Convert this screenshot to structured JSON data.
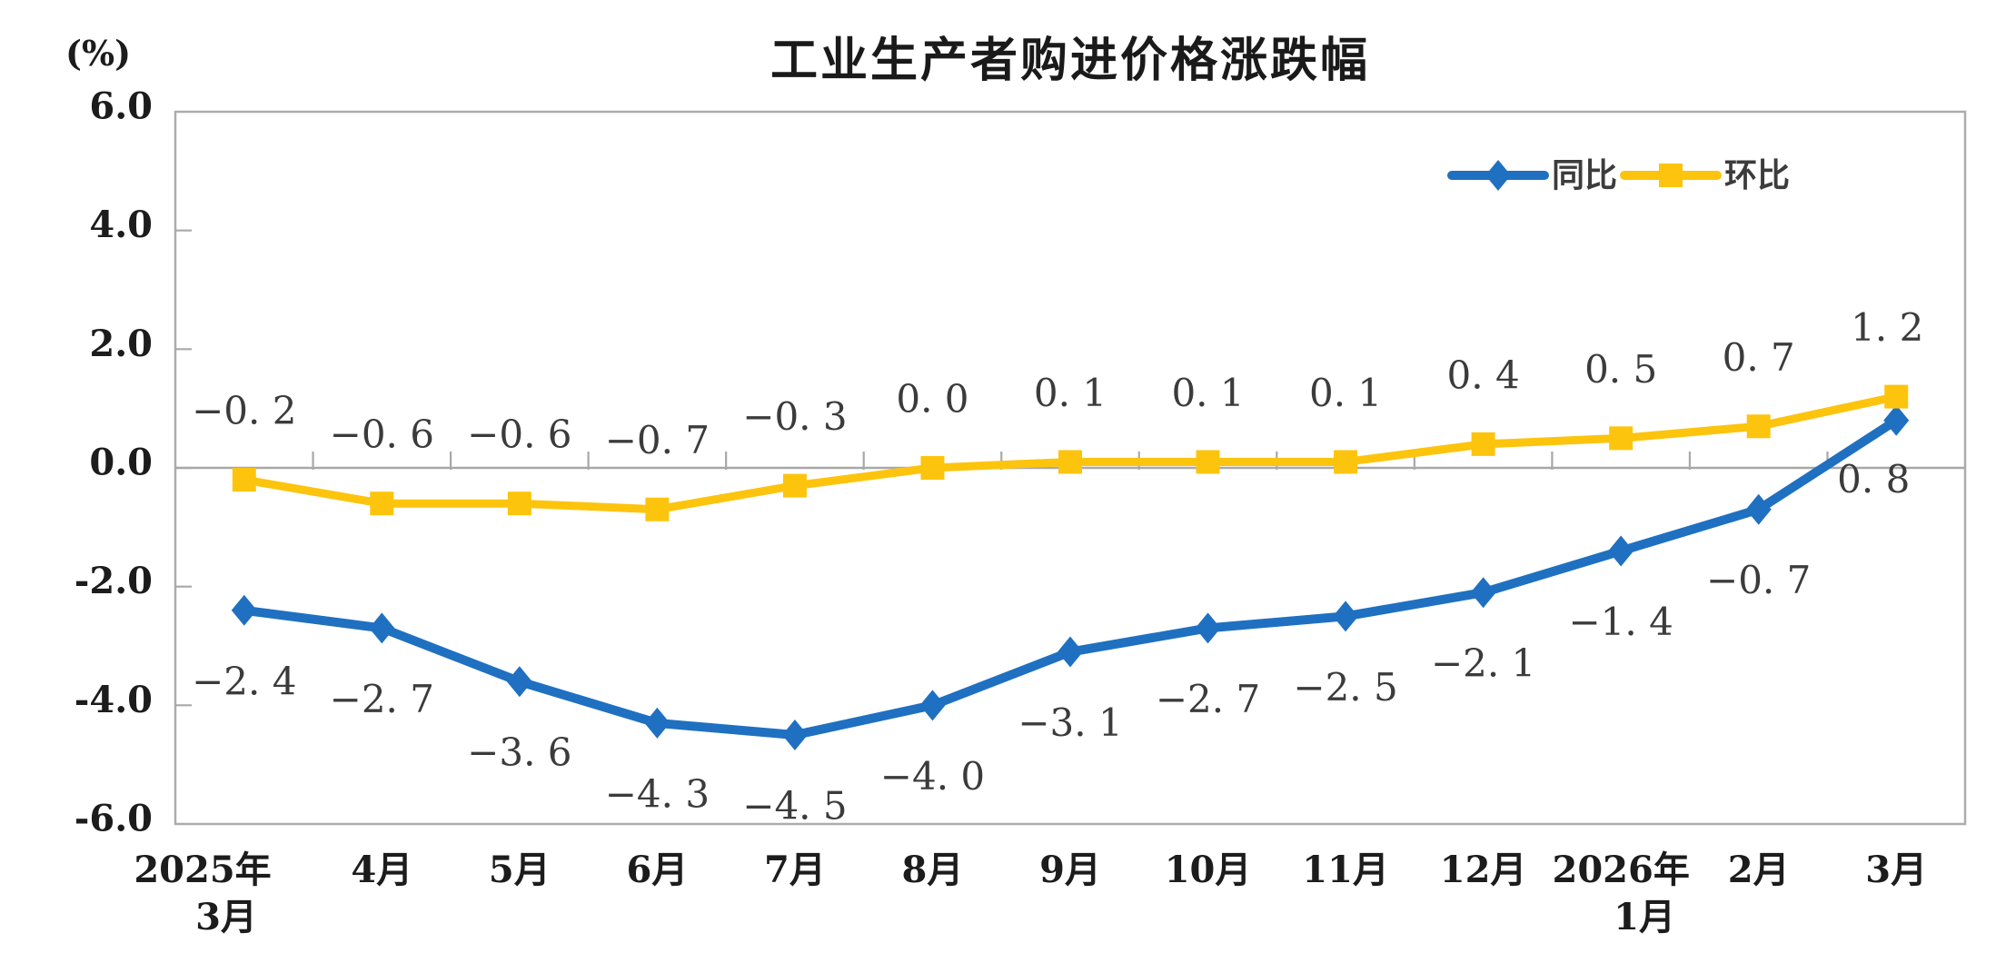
{
  "title": "工业生产者购进价格涨跌幅",
  "unit_label": "(%)",
  "colors": {
    "yoy_blue": "#1F70C1",
    "mom_yellow": "#FCC40D",
    "plot_border": "#ACACAC",
    "axis_gray": "#A8A8A8",
    "data_label_text": "#3B3B3B",
    "axis_text": "#1C1C1C",
    "background": "#FFFFFF"
  },
  "chart_data": {
    "type": "line",
    "title": "工业生产者购进价格涨跌幅",
    "ylabel": "(%)",
    "categories": [
      [
        "2025年",
        "3月"
      ],
      [
        "4月"
      ],
      [
        "5月"
      ],
      [
        "6月"
      ],
      [
        "7月"
      ],
      [
        "8月"
      ],
      [
        "9月"
      ],
      [
        "10月"
      ],
      [
        "11月"
      ],
      [
        "12月"
      ],
      [
        "2026年",
        "1月"
      ],
      [
        "2月"
      ],
      [
        "3月"
      ]
    ],
    "series": [
      {
        "name": "同比",
        "marker": "diamond",
        "color": "#1F70C1",
        "values": [
          -2.4,
          -2.7,
          -3.6,
          -4.3,
          -4.5,
          -4.0,
          -3.1,
          -2.7,
          -2.5,
          -2.1,
          -1.4,
          -0.7,
          0.8
        ],
        "labels": [
          "−2. 4",
          "−2. 7",
          "−3. 6",
          "−4. 3",
          "−4. 5",
          "−4. 0",
          "−3. 1",
          "−2. 7",
          "−2. 5",
          "−2. 1",
          "−1. 4",
          "−0. 7",
          "0. 8"
        ],
        "label_side": "below",
        "label_offsets": [
          [
            0,
            0
          ],
          [
            0,
            0
          ],
          [
            0,
            0
          ],
          [
            0,
            0
          ],
          [
            0,
            0
          ],
          [
            0,
            0
          ],
          [
            0,
            0
          ],
          [
            0,
            0
          ],
          [
            0,
            0
          ],
          [
            0,
            0
          ],
          [
            0,
            0
          ],
          [
            0,
            0
          ],
          [
            -25,
            -13
          ]
        ]
      },
      {
        "name": "环比",
        "marker": "square",
        "color": "#FCC40D",
        "values": [
          -0.2,
          -0.6,
          -0.6,
          -0.7,
          -0.3,
          0.0,
          0.1,
          0.1,
          0.1,
          0.4,
          0.5,
          0.7,
          1.2
        ],
        "labels": [
          "−0. 2",
          "−0. 6",
          "−0. 6",
          "−0. 7",
          "−0. 3",
          "0. 0",
          "0. 1",
          "0. 1",
          "0. 1",
          "0. 4",
          "0. 5",
          "0. 7",
          "1. 2"
        ],
        "label_side": "above",
        "label_offsets": [
          [
            0,
            0
          ],
          [
            0,
            0
          ],
          [
            0,
            0
          ],
          [
            0,
            0
          ],
          [
            0,
            0
          ],
          [
            0,
            0
          ],
          [
            0,
            0
          ],
          [
            0,
            0
          ],
          [
            0,
            0
          ],
          [
            0,
            0
          ],
          [
            0,
            0
          ],
          [
            0,
            0
          ],
          [
            -10,
            0
          ]
        ]
      }
    ],
    "ylim": [
      -6,
      6
    ],
    "yticks": [
      "6.0",
      "4.0",
      "2.0",
      "0.0",
      "-2.0",
      "-4.0",
      "-6.0"
    ],
    "ytick_values": [
      6,
      4,
      2,
      0,
      -2,
      -4,
      -6
    ],
    "grid": false,
    "legend_position": "top-right-inside",
    "legend": [
      "同比",
      "环比"
    ]
  }
}
